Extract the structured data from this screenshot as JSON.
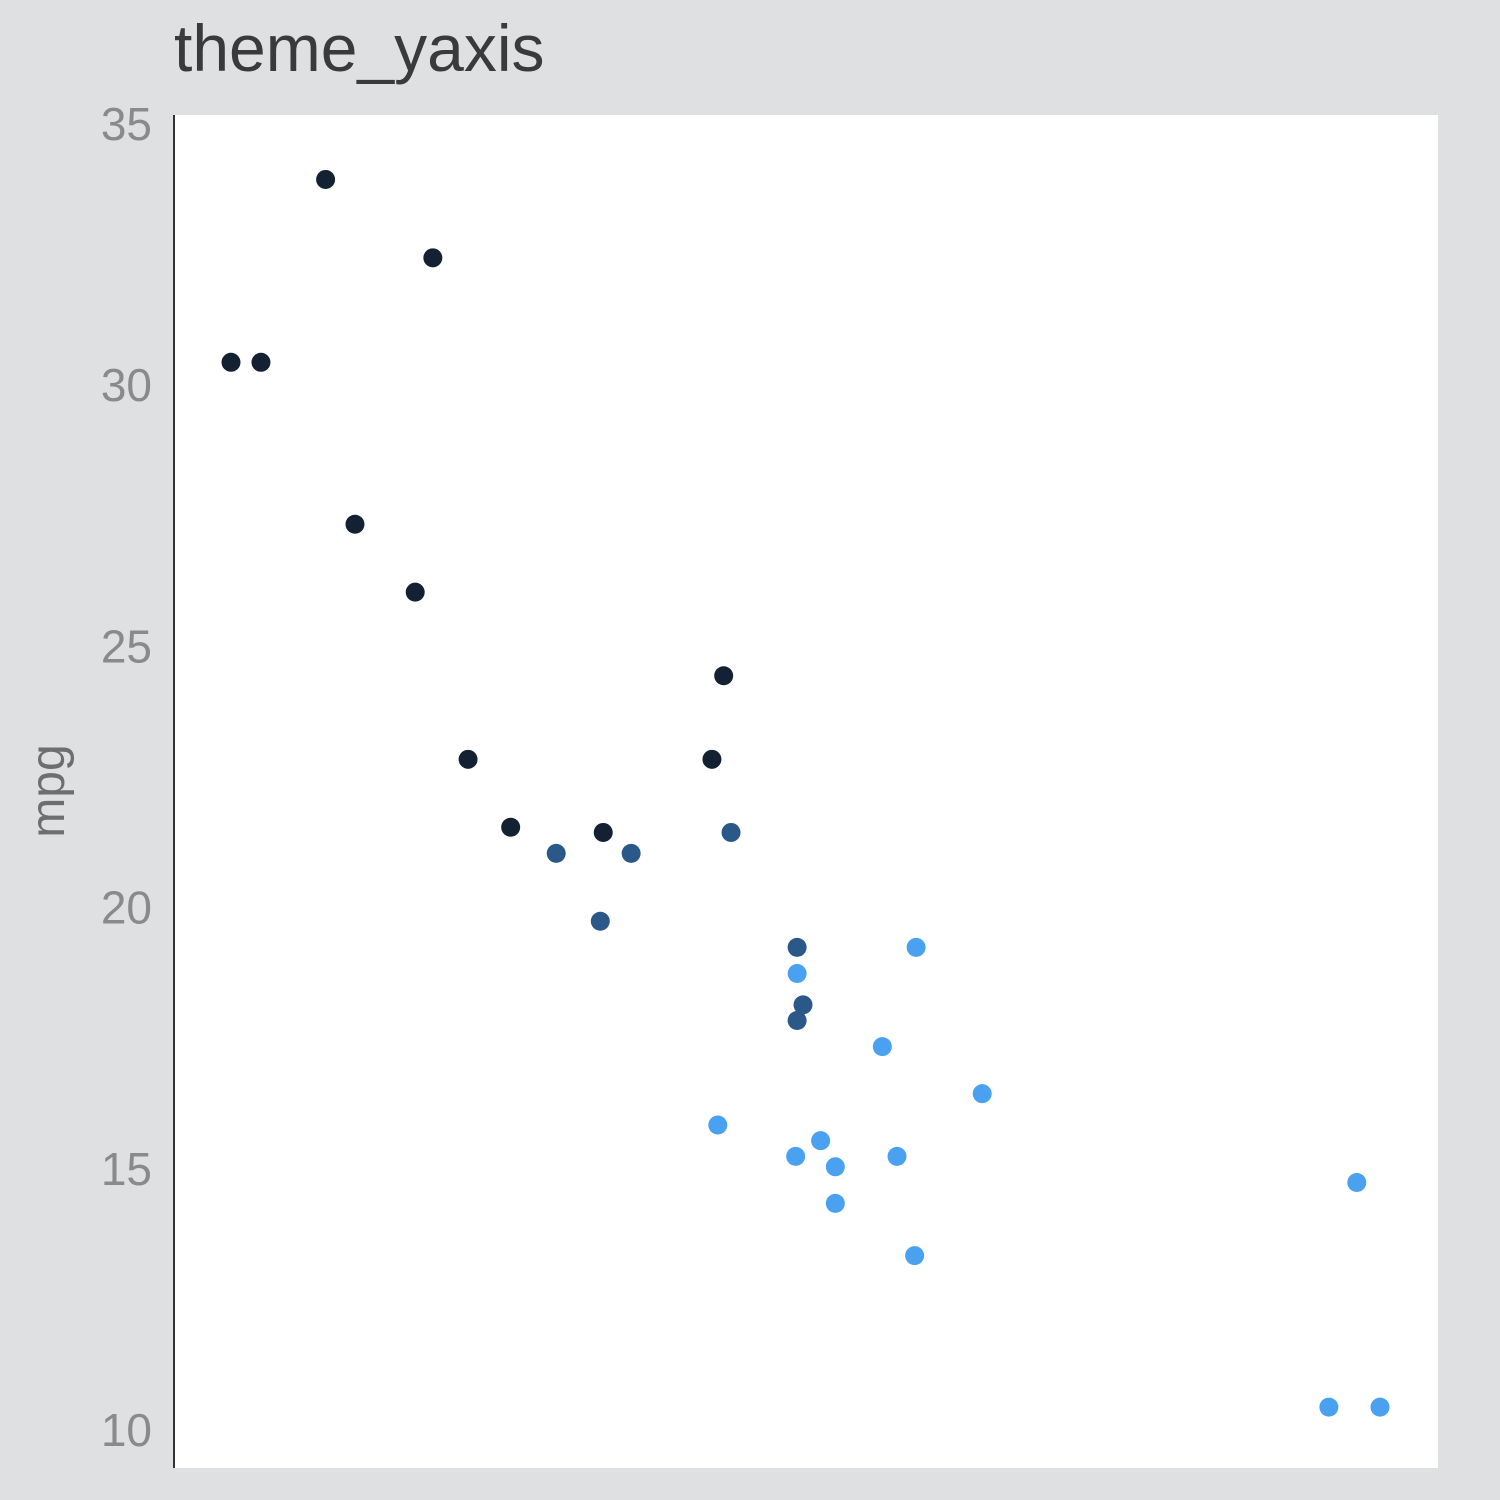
{
  "chart_data": {
    "type": "scatter",
    "title": "theme_yaxis",
    "xlabel": "",
    "ylabel": "mpg",
    "ylim": [
      10,
      35
    ],
    "y_ticks": [
      "10",
      "15",
      "20",
      "25",
      "30",
      "35"
    ],
    "y_tick_values": [
      10,
      15,
      20,
      25,
      30,
      35
    ],
    "xlim": [
      1.4,
      5.5
    ],
    "x_axis_visible": false,
    "grid": false,
    "legend": "none",
    "colors": {
      "page_background": "#dfe0e2",
      "panel_background": "#ffffff",
      "axis_line": "#333333",
      "tick_label": "#8a8a8a",
      "ylabel": "#6e6e6e",
      "group_dark": "#132132",
      "group_mid": "#2a5888",
      "group_light": "#4aa1f0"
    },
    "groups": [
      "group_dark",
      "group_mid",
      "group_light"
    ],
    "points": [
      {
        "x": 1.513,
        "y": 30.4,
        "group": "group_dark"
      },
      {
        "x": 1.615,
        "y": 30.4,
        "group": "group_dark"
      },
      {
        "x": 1.835,
        "y": 33.9,
        "group": "group_dark"
      },
      {
        "x": 1.935,
        "y": 27.3,
        "group": "group_dark"
      },
      {
        "x": 2.14,
        "y": 26.0,
        "group": "group_dark"
      },
      {
        "x": 2.2,
        "y": 32.4,
        "group": "group_dark"
      },
      {
        "x": 2.32,
        "y": 22.8,
        "group": "group_dark"
      },
      {
        "x": 2.465,
        "y": 21.5,
        "group": "group_dark"
      },
      {
        "x": 2.62,
        "y": 21.0,
        "group": "group_mid"
      },
      {
        "x": 2.77,
        "y": 19.7,
        "group": "group_mid"
      },
      {
        "x": 2.78,
        "y": 21.4,
        "group": "group_dark"
      },
      {
        "x": 2.875,
        "y": 21.0,
        "group": "group_mid"
      },
      {
        "x": 3.15,
        "y": 22.8,
        "group": "group_dark"
      },
      {
        "x": 3.17,
        "y": 15.8,
        "group": "group_light"
      },
      {
        "x": 3.19,
        "y": 24.4,
        "group": "group_dark"
      },
      {
        "x": 3.215,
        "y": 21.4,
        "group": "group_mid"
      },
      {
        "x": 3.435,
        "y": 15.2,
        "group": "group_light"
      },
      {
        "x": 3.44,
        "y": 18.7,
        "group": "group_light"
      },
      {
        "x": 3.44,
        "y": 19.2,
        "group": "group_mid"
      },
      {
        "x": 3.44,
        "y": 17.8,
        "group": "group_mid"
      },
      {
        "x": 3.46,
        "y": 18.1,
        "group": "group_mid"
      },
      {
        "x": 3.52,
        "y": 15.5,
        "group": "group_light"
      },
      {
        "x": 3.57,
        "y": 15.0,
        "group": "group_light"
      },
      {
        "x": 3.57,
        "y": 14.3,
        "group": "group_light"
      },
      {
        "x": 3.73,
        "y": 17.3,
        "group": "group_light"
      },
      {
        "x": 3.78,
        "y": 15.2,
        "group": "group_light"
      },
      {
        "x": 3.84,
        "y": 13.3,
        "group": "group_light"
      },
      {
        "x": 3.845,
        "y": 19.2,
        "group": "group_light"
      },
      {
        "x": 4.07,
        "y": 16.4,
        "group": "group_light"
      },
      {
        "x": 5.25,
        "y": 10.4,
        "group": "group_light"
      },
      {
        "x": 5.345,
        "y": 14.7,
        "group": "group_light"
      },
      {
        "x": 5.424,
        "y": 10.4,
        "group": "group_light"
      }
    ]
  }
}
